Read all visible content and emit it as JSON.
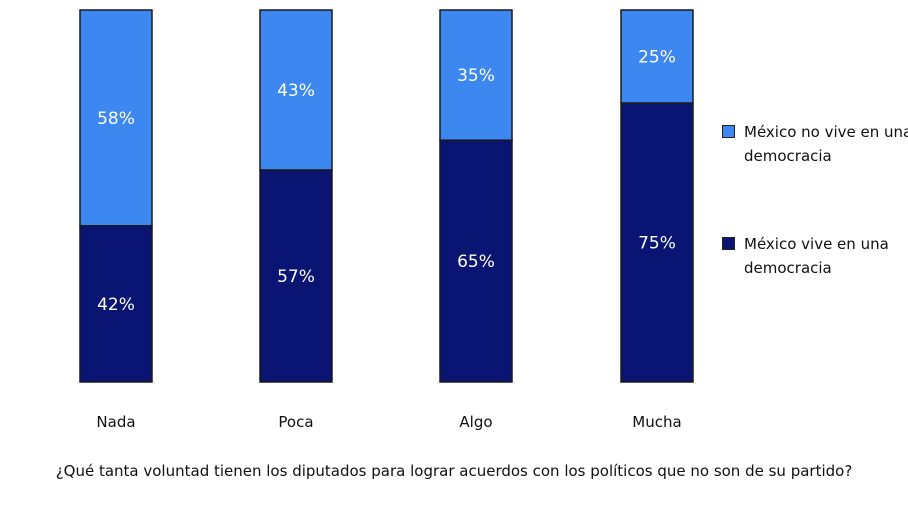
{
  "chart_data": {
    "type": "bar",
    "stacked": true,
    "categories": [
      "Nada",
      "Poca",
      "Algo",
      "Mucha"
    ],
    "series": [
      {
        "name": "México vive en una democracia",
        "values": [
          42,
          57,
          65,
          75
        ],
        "labels": [
          "42%",
          "57%",
          "65%",
          "75%"
        ],
        "color": "#0a1472"
      },
      {
        "name": "México no vive en una democracia",
        "values": [
          58,
          43,
          35,
          25
        ],
        "labels": [
          "58%",
          "43%",
          "35%",
          "25%"
        ],
        "color": "#3d87f0"
      }
    ],
    "title": "",
    "xlabel": "¿Qué tanta voluntad tienen los diputados para lograr acuerdos con los políticos que no son de su partido?",
    "ylabel": "",
    "ylim": [
      0,
      100
    ],
    "legend": {
      "placement": "right",
      "entries": [
        {
          "label": "México no vive en una democracia",
          "color": "#3d87f0"
        },
        {
          "label": "México vive en una democracia",
          "color": "#0a1472"
        }
      ]
    },
    "grid": false
  }
}
